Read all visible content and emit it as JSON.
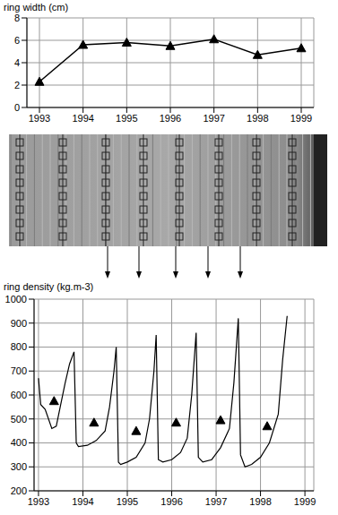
{
  "chart_data": [
    {
      "type": "line",
      "y_label": "ring width (cm)",
      "categories": [
        "1993",
        "1994",
        "1995",
        "1996",
        "1997",
        "1998",
        "1999"
      ],
      "values": [
        2.3,
        5.6,
        5.8,
        5.5,
        6.1,
        4.7,
        5.3
      ],
      "ylim": [
        0,
        8
      ],
      "yticks": [
        0,
        2,
        4,
        6,
        8
      ],
      "grid": true,
      "marker": "triangle",
      "line_style": "solid",
      "color": "#000000"
    },
    {
      "type": "line",
      "y_label": "ring density (kg.m-3)",
      "xlim": [
        1992.9,
        1999.2
      ],
      "xticks": [
        1993,
        1994,
        1995,
        1996,
        1997,
        1998,
        1999
      ],
      "ylim": [
        200,
        1000
      ],
      "yticks": [
        200,
        300,
        400,
        500,
        600,
        700,
        800,
        900,
        1000
      ],
      "grid": true,
      "series": [
        {
          "type": "line",
          "color": "#000000",
          "marker": "none",
          "line_style": "solid",
          "x": [
            1993.0,
            1993.05,
            1993.15,
            1993.3,
            1993.4,
            1993.5,
            1993.6,
            1993.7,
            1993.8,
            1993.85,
            1993.9,
            1994.1,
            1994.3,
            1994.5,
            1994.6,
            1994.7,
            1994.75,
            1994.8,
            1994.85,
            1995.0,
            1995.2,
            1995.4,
            1995.5,
            1995.6,
            1995.65,
            1995.7,
            1995.8,
            1996.0,
            1996.2,
            1996.35,
            1996.45,
            1996.55,
            1996.6,
            1996.7,
            1996.9,
            1997.1,
            1997.3,
            1997.4,
            1997.5,
            1997.55,
            1997.65,
            1997.8,
            1998.0,
            1998.2,
            1998.4,
            1998.5,
            1998.6
          ],
          "values": [
            670,
            560,
            540,
            460,
            470,
            560,
            650,
            730,
            780,
            400,
            385,
            390,
            410,
            450,
            550,
            700,
            800,
            320,
            310,
            320,
            340,
            400,
            500,
            700,
            850,
            330,
            320,
            330,
            360,
            420,
            600,
            860,
            340,
            320,
            330,
            380,
            460,
            650,
            920,
            350,
            300,
            310,
            340,
            400,
            520,
            750,
            930
          ]
        },
        {
          "type": "scatter",
          "color": "#000000",
          "marker": "triangle",
          "x": [
            1993.35,
            1994.25,
            1995.2,
            1996.1,
            1997.1,
            1998.15
          ],
          "values": [
            575,
            485,
            450,
            485,
            495,
            470
          ]
        }
      ]
    }
  ]
}
